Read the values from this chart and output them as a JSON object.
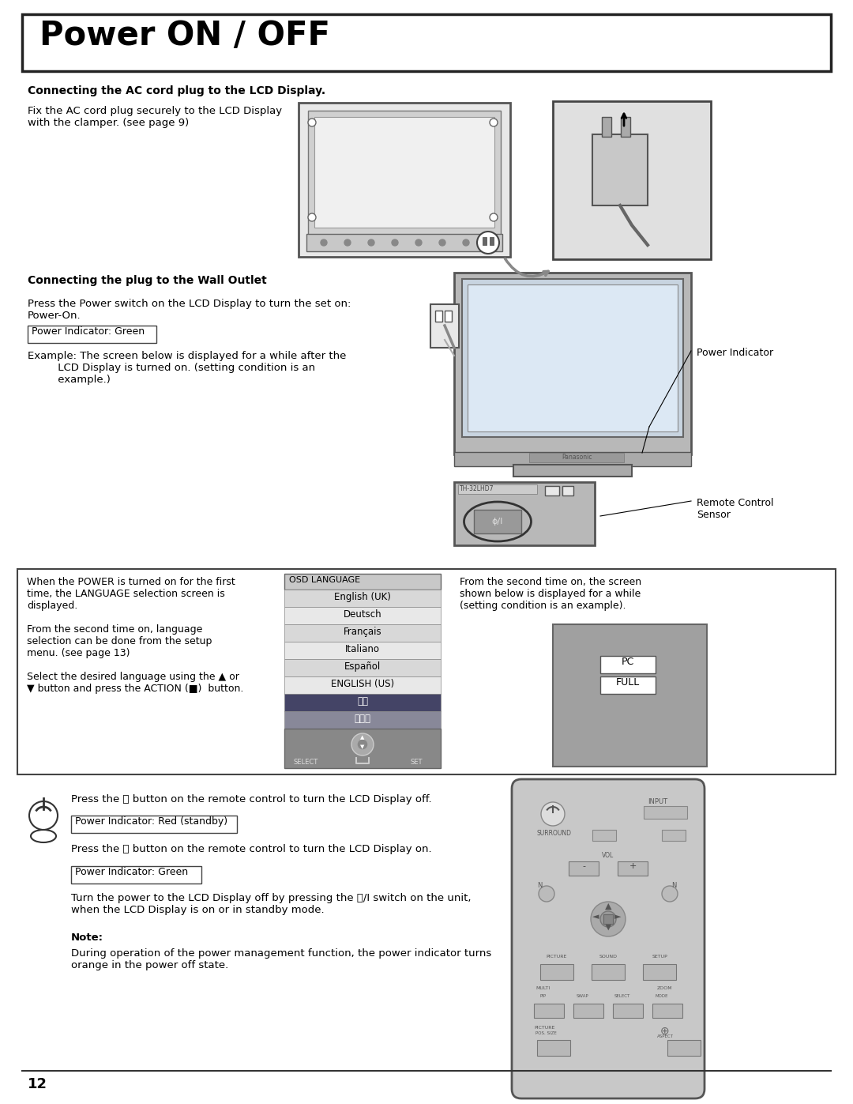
{
  "title": "Power ON / OFF",
  "bg_color": "#ffffff",
  "section1_heading": "Connecting the AC cord plug to the LCD Display.",
  "section1_text": "Fix the AC cord plug securely to the LCD Display\nwith the clamper. (see page 9)",
  "section2_heading": "Connecting the plug to the Wall Outlet",
  "section2_text1": "Press the Power switch on the LCD Display to turn the set on:\nPower-On.",
  "section2_indicator1": "Power Indicator: Green",
  "section2_text2": "Example: The screen below is displayed for a while after the\n         LCD Display is turned on. (setting condition is an\n         example.)",
  "section2_label1": "Power Indicator",
  "section2_label2": "Remote Control\nSensor",
  "box_section_left": "When the POWER is turned on for the first\ntime, the LANGUAGE selection screen is\ndisplayed.\n\nFrom the second time on, language\nselection can be done from the setup\nmenu. (see page 13)\n\nSelect the desired language using the ▲ or\n▼ button and press the ACTION (■)  button.",
  "box_section_right": "From the second time on, the screen\nshown below is displayed for a while\n(setting condition is an example).",
  "osd_title": "OSD LANGUAGE",
  "osd_languages": [
    "English (UK)",
    "Deutsch",
    "Français",
    "Italiano",
    "Español",
    "ENGLISH (US)",
    "中文",
    "日本語"
  ],
  "osd_selected": 7,
  "pc_label": "PC",
  "full_label": "FULL",
  "bottom_icon_text1": "Press the ⏻ button on the remote control to turn the LCD Display off.",
  "bottom_indicator1": "Power Indicator: Red (standby)",
  "bottom_text2": "Press the ⏻ button on the remote control to turn the LCD Display on.",
  "bottom_indicator2": "Power Indicator: Green",
  "bottom_text3": "Turn the power to the LCD Display off by pressing the ⏻/I switch on the unit,\nwhen the LCD Display is on or in standby mode.",
  "note_label": "Note:",
  "note_text": "During operation of the power management function, the power indicator turns\norange in the power off state.",
  "page_number": "12"
}
